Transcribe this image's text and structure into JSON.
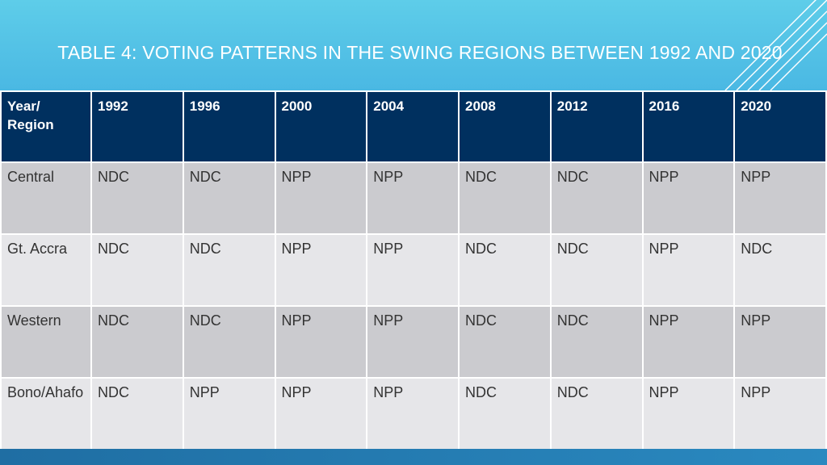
{
  "slide": {
    "title": "TABLE 4: VOTING PATTERNS IN THE SWING REGIONS BETWEEN 1992 AND 2020"
  },
  "table": {
    "headers": [
      "Year/ Region",
      "1992",
      "1996",
      "2000",
      "2004",
      "2008",
      "2012",
      "2016",
      "2020"
    ],
    "rows": [
      [
        "Central",
        "NDC",
        "NDC",
        "NPP",
        "NPP",
        "NDC",
        "NDC",
        "NPP",
        "NPP"
      ],
      [
        "Gt. Accra",
        "NDC",
        "NDC",
        "NPP",
        "NPP",
        "NDC",
        "NDC",
        "NPP",
        "NDC"
      ],
      [
        "Western",
        "NDC",
        "NDC",
        "NPP",
        "NPP",
        "NDC",
        "NDC",
        "NPP",
        "NPP"
      ],
      [
        "Bono/Ahafo",
        "NDC",
        "NPP",
        "NPP",
        "NPP",
        "NDC",
        "NDC",
        "NPP",
        "NPP"
      ]
    ]
  },
  "colors": {
    "title_band": "#4ab8e3",
    "header_fill": "#00305f",
    "row_dark": "#cbcbcf",
    "row_light": "#e6e6e9",
    "bottom_bar": "#1f6ea3"
  }
}
